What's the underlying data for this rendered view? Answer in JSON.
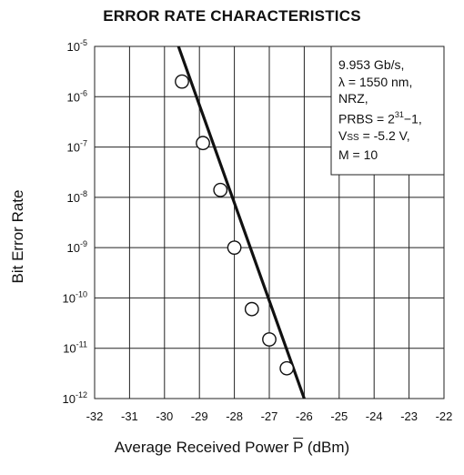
{
  "chart_data": {
    "type": "line",
    "title": "ERROR RATE CHARACTERISTICS",
    "ylabel": "Bit Error Rate",
    "xlabel_prefix": "Average Received Power ",
    "xlabel_symbol": "P",
    "xlabel_suffix": " (dBm)",
    "xlim": [
      -32,
      -22
    ],
    "ylim_log10": [
      -12,
      -5
    ],
    "y_scale": "log",
    "grid": true,
    "x_ticks": [
      "-32",
      "-31",
      "-30",
      "-29",
      "-28",
      "-27",
      "-26",
      "-25",
      "-24",
      "-23",
      "-22"
    ],
    "y_ticks": [
      {
        "exp": -5,
        "label": "10-5"
      },
      {
        "exp": -6,
        "label": "10-6"
      },
      {
        "exp": -7,
        "label": "10-7"
      },
      {
        "exp": -8,
        "label": "10-8"
      },
      {
        "exp": -9,
        "label": "10-9"
      },
      {
        "exp": -10,
        "label": "10-10"
      },
      {
        "exp": -11,
        "label": "10-11"
      },
      {
        "exp": -12,
        "label": "10-12"
      }
    ],
    "fit_line": {
      "x": [
        -29.6,
        -26.0
      ],
      "y": [
        "1e-5",
        "1e-12"
      ]
    },
    "points": {
      "x": [
        -29.5,
        -28.9,
        -28.4,
        -28.0,
        -27.5,
        -27.0,
        -26.5
      ],
      "y": [
        "2e-6",
        "1.2e-7",
        "1.4e-8",
        "1e-9",
        "6e-11",
        "1.5e-11",
        "4e-12"
      ]
    },
    "annotation": {
      "line1": "9.953 Gb/s,",
      "line2": "λ = 1550 nm,",
      "line3": "NRZ,",
      "line4_pre": "PRBS = 2",
      "line4_sup": "31",
      "line4_post": "−1,",
      "line5_v": "V",
      "line5_sc": "SS",
      "line5_post": " = -5.2 V,",
      "line6": "M = 10"
    },
    "colors": {
      "line": "#111111",
      "grid": "#222222",
      "marker_fill": "#ffffff"
    }
  }
}
